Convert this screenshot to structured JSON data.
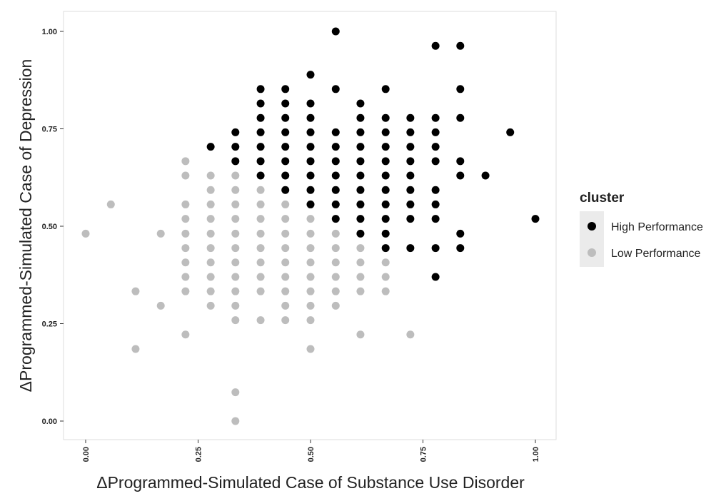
{
  "chart_data": {
    "type": "scatter",
    "xlabel": "ΔProgrammed-Simulated Case of Substance Use Disorder",
    "ylabel": "ΔProgrammed-Simulated Case of Depression",
    "xlim": [
      0,
      1
    ],
    "ylim": [
      0,
      1
    ],
    "x_ticks": [
      "0.00",
      "0.25",
      "0.50",
      "0.75",
      "1.00"
    ],
    "y_ticks": [
      "0.00",
      "0.25",
      "0.50",
      "0.75",
      "1.00"
    ],
    "grid": false,
    "legend": {
      "title": "cluster",
      "placement": "right",
      "entries": [
        "High Performance",
        "Low Performance"
      ]
    },
    "colors": {
      "High Performance": "#000000",
      "Low Performance": "#bdbdbd"
    },
    "series": [
      {
        "name": "High Performance",
        "points": [
          [
            0.278,
            0.704
          ],
          [
            0.333,
            0.741
          ],
          [
            0.333,
            0.704
          ],
          [
            0.333,
            0.667
          ],
          [
            0.389,
            0.852
          ],
          [
            0.389,
            0.815
          ],
          [
            0.389,
            0.778
          ],
          [
            0.389,
            0.741
          ],
          [
            0.389,
            0.704
          ],
          [
            0.389,
            0.667
          ],
          [
            0.389,
            0.63
          ],
          [
            0.444,
            0.852
          ],
          [
            0.444,
            0.815
          ],
          [
            0.444,
            0.778
          ],
          [
            0.444,
            0.741
          ],
          [
            0.444,
            0.704
          ],
          [
            0.444,
            0.667
          ],
          [
            0.444,
            0.63
          ],
          [
            0.444,
            0.593
          ],
          [
            0.5,
            0.889
          ],
          [
            0.5,
            0.815
          ],
          [
            0.5,
            0.778
          ],
          [
            0.5,
            0.741
          ],
          [
            0.5,
            0.704
          ],
          [
            0.5,
            0.667
          ],
          [
            0.5,
            0.63
          ],
          [
            0.5,
            0.593
          ],
          [
            0.5,
            0.556
          ],
          [
            0.556,
            1.0
          ],
          [
            0.556,
            0.852
          ],
          [
            0.556,
            0.741
          ],
          [
            0.556,
            0.704
          ],
          [
            0.556,
            0.667
          ],
          [
            0.556,
            0.63
          ],
          [
            0.556,
            0.593
          ],
          [
            0.556,
            0.556
          ],
          [
            0.556,
            0.519
          ],
          [
            0.611,
            0.815
          ],
          [
            0.611,
            0.778
          ],
          [
            0.611,
            0.741
          ],
          [
            0.611,
            0.704
          ],
          [
            0.611,
            0.667
          ],
          [
            0.611,
            0.63
          ],
          [
            0.611,
            0.593
          ],
          [
            0.611,
            0.556
          ],
          [
            0.611,
            0.519
          ],
          [
            0.611,
            0.481
          ],
          [
            0.667,
            0.852
          ],
          [
            0.667,
            0.778
          ],
          [
            0.667,
            0.741
          ],
          [
            0.667,
            0.704
          ],
          [
            0.667,
            0.667
          ],
          [
            0.667,
            0.63
          ],
          [
            0.667,
            0.593
          ],
          [
            0.667,
            0.556
          ],
          [
            0.667,
            0.519
          ],
          [
            0.667,
            0.481
          ],
          [
            0.667,
            0.444
          ],
          [
            0.722,
            0.778
          ],
          [
            0.722,
            0.741
          ],
          [
            0.722,
            0.704
          ],
          [
            0.722,
            0.667
          ],
          [
            0.722,
            0.63
          ],
          [
            0.722,
            0.593
          ],
          [
            0.722,
            0.556
          ],
          [
            0.722,
            0.519
          ],
          [
            0.722,
            0.444
          ],
          [
            0.778,
            0.963
          ],
          [
            0.778,
            0.778
          ],
          [
            0.778,
            0.741
          ],
          [
            0.778,
            0.704
          ],
          [
            0.778,
            0.667
          ],
          [
            0.778,
            0.593
          ],
          [
            0.778,
            0.556
          ],
          [
            0.778,
            0.519
          ],
          [
            0.778,
            0.444
          ],
          [
            0.778,
            0.37
          ],
          [
            0.833,
            0.963
          ],
          [
            0.833,
            0.852
          ],
          [
            0.833,
            0.778
          ],
          [
            0.833,
            0.667
          ],
          [
            0.833,
            0.63
          ],
          [
            0.833,
            0.481
          ],
          [
            0.833,
            0.444
          ],
          [
            0.889,
            0.63
          ],
          [
            0.944,
            0.741
          ],
          [
            1.0,
            0.519
          ]
        ]
      },
      {
        "name": "Low Performance",
        "points": [
          [
            0.0,
            0.481
          ],
          [
            0.056,
            0.556
          ],
          [
            0.111,
            0.333
          ],
          [
            0.111,
            0.185
          ],
          [
            0.167,
            0.481
          ],
          [
            0.167,
            0.296
          ],
          [
            0.222,
            0.667
          ],
          [
            0.222,
            0.63
          ],
          [
            0.222,
            0.556
          ],
          [
            0.222,
            0.519
          ],
          [
            0.222,
            0.481
          ],
          [
            0.222,
            0.444
          ],
          [
            0.222,
            0.407
          ],
          [
            0.222,
            0.37
          ],
          [
            0.222,
            0.333
          ],
          [
            0.222,
            0.222
          ],
          [
            0.278,
            0.63
          ],
          [
            0.278,
            0.593
          ],
          [
            0.278,
            0.556
          ],
          [
            0.278,
            0.519
          ],
          [
            0.278,
            0.481
          ],
          [
            0.278,
            0.444
          ],
          [
            0.278,
            0.407
          ],
          [
            0.278,
            0.37
          ],
          [
            0.278,
            0.333
          ],
          [
            0.278,
            0.296
          ],
          [
            0.333,
            0.63
          ],
          [
            0.333,
            0.593
          ],
          [
            0.333,
            0.556
          ],
          [
            0.333,
            0.519
          ],
          [
            0.333,
            0.481
          ],
          [
            0.333,
            0.444
          ],
          [
            0.333,
            0.407
          ],
          [
            0.333,
            0.37
          ],
          [
            0.333,
            0.333
          ],
          [
            0.333,
            0.296
          ],
          [
            0.333,
            0.259
          ],
          [
            0.333,
            0.074
          ],
          [
            0.333,
            0.0
          ],
          [
            0.389,
            0.593
          ],
          [
            0.389,
            0.556
          ],
          [
            0.389,
            0.519
          ],
          [
            0.389,
            0.481
          ],
          [
            0.389,
            0.444
          ],
          [
            0.389,
            0.407
          ],
          [
            0.389,
            0.37
          ],
          [
            0.389,
            0.333
          ],
          [
            0.389,
            0.259
          ],
          [
            0.444,
            0.556
          ],
          [
            0.444,
            0.519
          ],
          [
            0.444,
            0.481
          ],
          [
            0.444,
            0.444
          ],
          [
            0.444,
            0.407
          ],
          [
            0.444,
            0.37
          ],
          [
            0.444,
            0.333
          ],
          [
            0.444,
            0.296
          ],
          [
            0.444,
            0.259
          ],
          [
            0.5,
            0.519
          ],
          [
            0.5,
            0.481
          ],
          [
            0.5,
            0.444
          ],
          [
            0.5,
            0.407
          ],
          [
            0.5,
            0.37
          ],
          [
            0.5,
            0.333
          ],
          [
            0.5,
            0.296
          ],
          [
            0.5,
            0.259
          ],
          [
            0.5,
            0.185
          ],
          [
            0.556,
            0.481
          ],
          [
            0.556,
            0.444
          ],
          [
            0.556,
            0.407
          ],
          [
            0.556,
            0.37
          ],
          [
            0.556,
            0.333
          ],
          [
            0.556,
            0.296
          ],
          [
            0.611,
            0.444
          ],
          [
            0.611,
            0.407
          ],
          [
            0.611,
            0.37
          ],
          [
            0.611,
            0.333
          ],
          [
            0.611,
            0.222
          ],
          [
            0.667,
            0.407
          ],
          [
            0.667,
            0.37
          ],
          [
            0.667,
            0.333
          ],
          [
            0.722,
            0.222
          ]
        ]
      }
    ]
  }
}
